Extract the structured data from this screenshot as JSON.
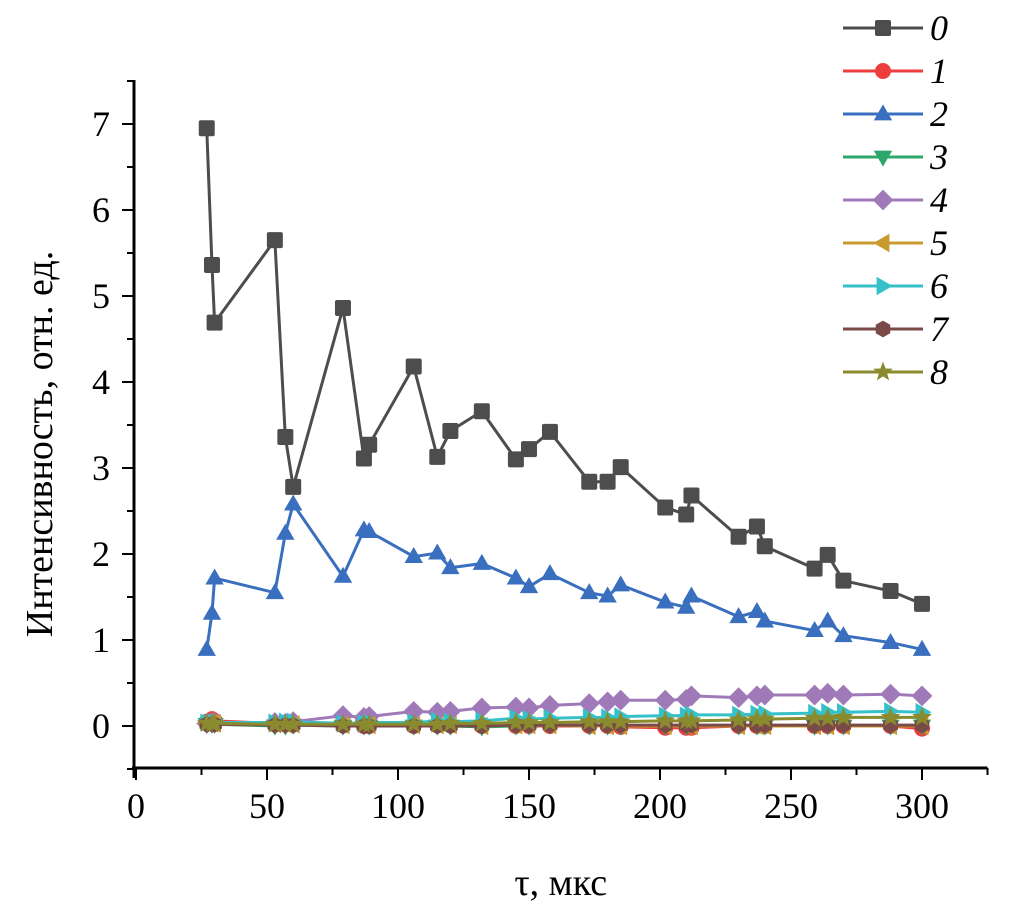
{
  "chart_data": {
    "type": "line",
    "title": "",
    "xlabel": "τ, мкс",
    "ylabel": "Интенсивность, отн. ед.",
    "xlim": [
      0,
      325
    ],
    "ylim": [
      -0.5,
      7.5
    ],
    "xticks": [
      0,
      50,
      100,
      150,
      200,
      250,
      300
    ],
    "yticks": [
      0,
      1,
      2,
      3,
      4,
      5,
      6,
      7
    ],
    "grid": false,
    "legend_position": "top-right",
    "x": [
      27,
      29,
      30,
      53,
      57,
      60,
      79,
      87,
      89,
      106,
      115,
      120,
      132,
      145,
      150,
      158,
      173,
      180,
      185,
      202,
      210,
      212,
      230,
      237,
      240,
      259,
      264,
      270,
      288,
      300
    ],
    "series": [
      {
        "name": "0",
        "color": "#4d4d4d",
        "marker": "square",
        "values": [
          6.95,
          5.36,
          4.69,
          5.65,
          3.36,
          2.78,
          4.86,
          3.11,
          3.27,
          4.18,
          3.13,
          3.43,
          3.66,
          3.1,
          3.22,
          3.42,
          2.84,
          2.84,
          3.01,
          2.54,
          2.46,
          2.68,
          2.2,
          2.32,
          2.09,
          1.83,
          1.99,
          1.69,
          1.57,
          1.42
        ]
      },
      {
        "name": "1",
        "color": "#ee3d3d",
        "marker": "circle",
        "values": [
          0.05,
          0.08,
          0.06,
          0.03,
          0.03,
          0.03,
          0.01,
          0.0,
          0.0,
          0.0,
          0.01,
          0.01,
          0.0,
          0.0,
          0.0,
          0.0,
          0.0,
          0.0,
          -0.01,
          -0.02,
          -0.02,
          -0.02,
          0.0,
          0.0,
          0.0,
          0.0,
          0.0,
          0.0,
          0.0,
          -0.03
        ]
      },
      {
        "name": "2",
        "color": "#3a6fbf",
        "marker": "triangle-up",
        "values": [
          0.89,
          1.31,
          1.72,
          1.55,
          2.24,
          2.58,
          1.74,
          2.28,
          2.26,
          1.97,
          2.01,
          1.84,
          1.89,
          1.72,
          1.62,
          1.77,
          1.55,
          1.51,
          1.64,
          1.44,
          1.38,
          1.51,
          1.27,
          1.33,
          1.22,
          1.11,
          1.22,
          1.05,
          0.97,
          0.89
        ]
      },
      {
        "name": "3",
        "color": "#2da86a",
        "marker": "triangle-down",
        "values": [
          0.02,
          0.02,
          0.02,
          0.0,
          0.0,
          0.01,
          0.0,
          0.0,
          0.0,
          0.0,
          0.0,
          0.0,
          -0.01,
          0.0,
          0.0,
          0.01,
          0.0,
          0.0,
          0.0,
          0.0,
          0.0,
          0.0,
          0.0,
          0.0,
          0.0,
          0.0,
          0.0,
          0.0,
          0.0,
          0.0
        ]
      },
      {
        "name": "4",
        "color": "#a07ab8",
        "marker": "diamond",
        "values": [
          0.03,
          0.04,
          0.04,
          0.04,
          0.03,
          0.05,
          0.12,
          0.1,
          0.11,
          0.17,
          0.16,
          0.17,
          0.21,
          0.22,
          0.21,
          0.24,
          0.26,
          0.28,
          0.3,
          0.3,
          0.31,
          0.35,
          0.33,
          0.35,
          0.36,
          0.36,
          0.38,
          0.36,
          0.37,
          0.35
        ]
      },
      {
        "name": "5",
        "color": "#c99a2e",
        "marker": "triangle-left",
        "values": [
          0.03,
          0.03,
          0.03,
          0.02,
          0.02,
          0.02,
          0.01,
          0.01,
          0.01,
          0.01,
          0.01,
          0.01,
          0.0,
          0.01,
          0.01,
          0.01,
          0.0,
          0.0,
          0.0,
          0.0,
          0.0,
          0.0,
          0.0,
          0.0,
          0.0,
          0.0,
          0.0,
          0.0,
          0.0,
          0.0
        ]
      },
      {
        "name": "6",
        "color": "#36c0c8",
        "marker": "triangle-right",
        "values": [
          0.04,
          0.04,
          0.04,
          0.04,
          0.05,
          0.05,
          0.03,
          0.03,
          0.04,
          0.04,
          0.06,
          0.05,
          0.06,
          0.09,
          0.08,
          0.09,
          0.1,
          0.1,
          0.11,
          0.12,
          0.12,
          0.13,
          0.13,
          0.14,
          0.14,
          0.15,
          0.16,
          0.16,
          0.17,
          0.16
        ]
      },
      {
        "name": "7",
        "color": "#7a4a48",
        "marker": "hexagon",
        "values": [
          0.02,
          0.02,
          0.02,
          0.01,
          0.01,
          0.01,
          0.0,
          0.0,
          0.0,
          0.0,
          0.0,
          0.0,
          0.0,
          0.01,
          0.01,
          0.01,
          0.01,
          0.01,
          0.01,
          0.01,
          0.01,
          0.01,
          0.01,
          0.01,
          0.01,
          0.01,
          0.01,
          0.01,
          0.01,
          0.01
        ]
      },
      {
        "name": "8",
        "color": "#8a8a2e",
        "marker": "star",
        "values": [
          0.03,
          0.03,
          0.03,
          0.02,
          0.02,
          0.02,
          0.02,
          0.02,
          0.02,
          0.02,
          0.02,
          0.03,
          0.03,
          0.04,
          0.04,
          0.04,
          0.05,
          0.05,
          0.05,
          0.06,
          0.06,
          0.06,
          0.07,
          0.08,
          0.08,
          0.09,
          0.09,
          0.1,
          0.1,
          0.1
        ]
      }
    ]
  }
}
